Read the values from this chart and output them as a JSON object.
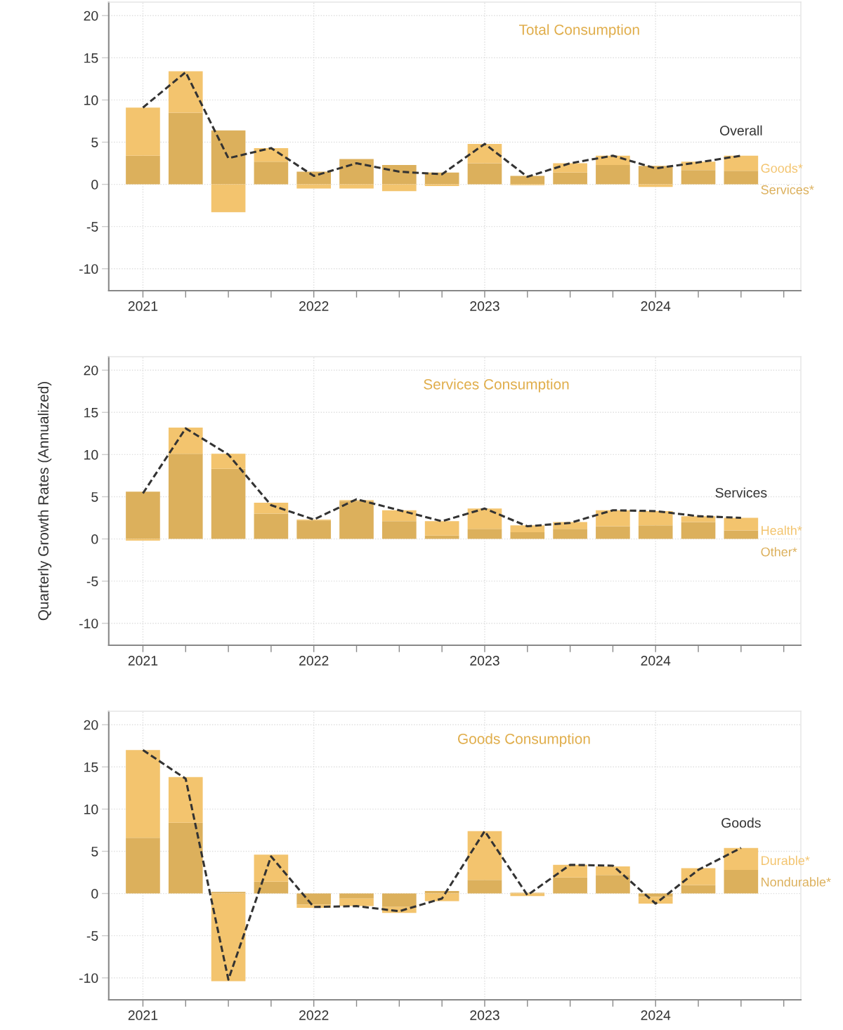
{
  "chart_data": [
    {
      "type": "bar",
      "stacked": true,
      "title": "Total Consumption",
      "line_style": "dashed",
      "grid": true,
      "x": [
        2021,
        2021.25,
        2021.5,
        2021.75,
        2022,
        2022.25,
        2022.5,
        2022.75,
        2023,
        2023.25,
        2023.5,
        2023.75,
        2024,
        2024.25,
        2024.5
      ],
      "xlim": [
        2020.8,
        2024.85
      ],
      "xticks": [
        2021,
        {
          "value": 2021.25,
          "label": null
        },
        {
          "value": 2021.5,
          "label": null
        },
        {
          "value": 2021.75,
          "label": null
        },
        2022,
        {
          "value": 2022.25,
          "label": null
        },
        {
          "value": 2022.5,
          "label": null
        },
        {
          "value": 2022.75,
          "label": null
        },
        2023,
        {
          "value": 2023.25,
          "label": null
        },
        {
          "value": 2023.5,
          "label": null
        },
        {
          "value": 2023.75,
          "label": null
        },
        2024,
        {
          "value": 2024.25,
          "label": null
        },
        {
          "value": 2024.5,
          "label": null
        },
        {
          "value": 2024.75,
          "label": null
        }
      ],
      "ylim": [
        -12.6,
        21.6
      ],
      "yticks": [
        -10,
        -5,
        0,
        5,
        10,
        15,
        20
      ],
      "series": [
        {
          "name": "Services*",
          "color": "#dcb05c",
          "values": [
            3.4,
            8.5,
            6.4,
            2.7,
            1.5,
            3.0,
            2.3,
            1.4,
            2.5,
            1.0,
            1.4,
            2.3,
            2.2,
            1.7,
            1.6
          ]
        },
        {
          "name": "Goods*",
          "color": "#f3c46e",
          "values": [
            5.7,
            4.9,
            -3.3,
            1.6,
            -0.5,
            -0.5,
            -0.8,
            -0.2,
            2.3,
            -0.1,
            1.1,
            1.1,
            -0.3,
            1.0,
            1.8
          ]
        },
        {
          "name": "Overall",
          "type": "line",
          "color": "#333333",
          "values": [
            9.1,
            13.3,
            3.1,
            4.3,
            1.0,
            2.5,
            1.5,
            1.2,
            4.8,
            0.9,
            2.5,
            3.4,
            1.9,
            2.6,
            3.4
          ]
        }
      ]
    },
    {
      "type": "bar",
      "stacked": true,
      "title": "Services Consumption",
      "ylabel": "Quarterly Growth Rates (Annualized)",
      "line_style": "dashed",
      "grid": true,
      "x": [
        2021,
        2021.25,
        2021.5,
        2021.75,
        2022,
        2022.25,
        2022.5,
        2022.75,
        2023,
        2023.25,
        2023.5,
        2023.75,
        2024,
        2024.25,
        2024.5
      ],
      "xlim": [
        2020.8,
        2024.85
      ],
      "xticks": [
        2021,
        {
          "value": 2021.25,
          "label": null
        },
        {
          "value": 2021.5,
          "label": null
        },
        {
          "value": 2021.75,
          "label": null
        },
        2022,
        {
          "value": 2022.25,
          "label": null
        },
        {
          "value": 2022.5,
          "label": null
        },
        {
          "value": 2022.75,
          "label": null
        },
        2023,
        {
          "value": 2023.25,
          "label": null
        },
        {
          "value": 2023.5,
          "label": null
        },
        {
          "value": 2023.75,
          "label": null
        },
        2024,
        {
          "value": 2024.25,
          "label": null
        },
        {
          "value": 2024.5,
          "label": null
        },
        {
          "value": 2024.75,
          "label": null
        }
      ],
      "ylim": [
        -12.6,
        21.6
      ],
      "yticks": [
        -10,
        -5,
        0,
        5,
        10,
        15,
        20
      ],
      "series": [
        {
          "name": "Other*",
          "color": "#dcb05c",
          "values": [
            5.6,
            10.1,
            8.3,
            3.0,
            2.2,
            4.5,
            2.1,
            0.4,
            1.2,
            0.8,
            1.2,
            1.5,
            1.6,
            2.0,
            1.0
          ]
        },
        {
          "name": "Health*",
          "color": "#f3c46e",
          "values": [
            -0.2,
            3.1,
            1.8,
            1.3,
            0.1,
            0.1,
            1.3,
            1.7,
            2.4,
            0.8,
            0.8,
            1.9,
            1.7,
            0.7,
            1.5
          ]
        },
        {
          "name": "Services",
          "type": "line",
          "color": "#333333",
          "values": [
            5.4,
            13.1,
            10.0,
            4.0,
            2.3,
            4.7,
            3.4,
            2.1,
            3.6,
            1.5,
            1.9,
            3.4,
            3.3,
            2.7,
            2.5
          ]
        }
      ]
    },
    {
      "type": "bar",
      "stacked": true,
      "title": "Goods Consumption",
      "line_style": "dashed",
      "grid": true,
      "x": [
        2021,
        2021.25,
        2021.5,
        2021.75,
        2022,
        2022.25,
        2022.5,
        2022.75,
        2023,
        2023.25,
        2023.5,
        2023.75,
        2024,
        2024.25,
        2024.5
      ],
      "xlim": [
        2020.8,
        2024.85
      ],
      "xticks": [
        2021,
        {
          "value": 2021.25,
          "label": null
        },
        {
          "value": 2021.5,
          "label": null
        },
        {
          "value": 2021.75,
          "label": null
        },
        2022,
        {
          "value": 2022.25,
          "label": null
        },
        {
          "value": 2022.5,
          "label": null
        },
        {
          "value": 2022.75,
          "label": null
        },
        2023,
        {
          "value": 2023.25,
          "label": null
        },
        {
          "value": 2023.5,
          "label": null
        },
        {
          "value": 2023.75,
          "label": null
        },
        2024,
        {
          "value": 2024.25,
          "label": null
        },
        {
          "value": 2024.5,
          "label": null
        },
        {
          "value": 2024.75,
          "label": null
        }
      ],
      "ylim": [
        -12.6,
        21.6
      ],
      "yticks": [
        -10,
        -5,
        0,
        5,
        10,
        15,
        20
      ],
      "series": [
        {
          "name": "Nondurable*",
          "color": "#dcb05c",
          "values": [
            6.6,
            8.4,
            0.2,
            1.4,
            -1.3,
            -0.6,
            -1.6,
            0.3,
            1.6,
            0.1,
            1.9,
            2.2,
            -0.4,
            1.0,
            2.8
          ]
        },
        {
          "name": "Durable*",
          "color": "#f3c46e",
          "values": [
            10.4,
            5.4,
            -10.4,
            3.2,
            -0.4,
            -0.9,
            -0.7,
            -0.9,
            5.8,
            -0.3,
            1.5,
            1.0,
            -0.8,
            2.0,
            2.6
          ]
        },
        {
          "name": "Goods",
          "type": "line",
          "color": "#333333",
          "values": [
            17.0,
            13.6,
            -10.2,
            4.4,
            -1.6,
            -1.5,
            -2.1,
            -0.6,
            7.4,
            -0.2,
            3.4,
            3.3,
            -1.2,
            2.8,
            5.4
          ]
        }
      ]
    }
  ]
}
